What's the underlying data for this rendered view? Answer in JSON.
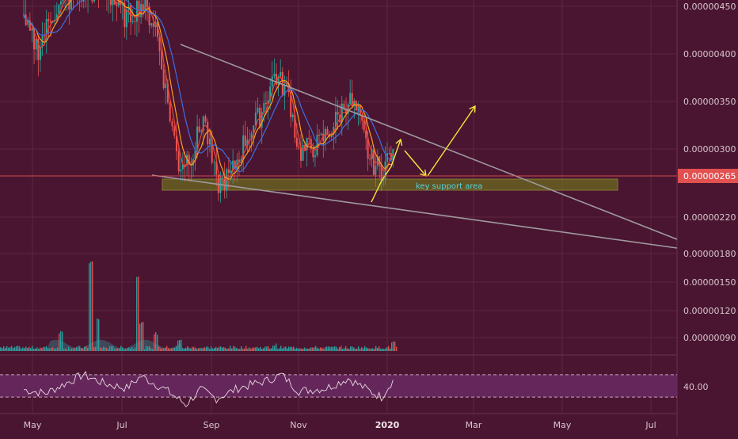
{
  "colors": {
    "background": "#4a1530",
    "grid": "#5e2740",
    "axis_text": "#d8c6cf",
    "candle_up": "#26a69a",
    "candle_down": "#ef5350",
    "ma_fast": "#f6a21a",
    "ma_slow": "#3d6fe0",
    "ma_red": "#e8463a",
    "trendline": "#9e9aa0",
    "support_fill": "#6b6a1f",
    "support_text": "#53d6e0",
    "arrow": "#f6e63a",
    "price_line": "#e25050",
    "price_tag_bg": "#e25050",
    "rsi_band": "#6a2a63",
    "rsi_line": "#e9d9e0",
    "volume": "#2aa7a7"
  },
  "chart_data": [
    {
      "type": "candlestick",
      "price_axis": {
        "ticks": [
          "0.00000450",
          "0.00000400",
          "0.00000350",
          "0.00000300",
          "0.00000265",
          "0.00000220",
          "0.00000180",
          "0.00000150",
          "0.00000120",
          "0.00000090"
        ],
        "current_price_label": "0.00000265",
        "current_price": 2.65e-06,
        "scale": "log"
      },
      "time_axis": {
        "ticks": [
          "May",
          "Jul",
          "Sep",
          "Nov",
          "2020",
          "Mar",
          "May",
          "Jul"
        ]
      },
      "annotations": [
        {
          "type": "zone",
          "label": "key support area",
          "from_price": 2.52e-06,
          "to_price": 2.62e-06
        },
        {
          "type": "trendline",
          "label": "",
          "role": "descending resistance"
        },
        {
          "type": "trendline",
          "label": "",
          "role": "descending support"
        },
        {
          "type": "projection-arrows",
          "label": ""
        }
      ],
      "moving_averages": [
        "fast",
        "slow",
        "red"
      ],
      "series_sketch": [
        {
          "t": "2019-04-25",
          "close": 4.2e-06
        },
        {
          "t": "2019-05-05",
          "close": 3.85e-06
        },
        {
          "t": "2019-05-15",
          "close": 4.4e-06
        },
        {
          "t": "2019-06-01",
          "close": 4.7e-06
        },
        {
          "t": "2019-06-20",
          "close": 4.8e-06
        },
        {
          "t": "2019-07-05",
          "close": 4.3e-06
        },
        {
          "t": "2019-07-15",
          "close": 4.55e-06
        },
        {
          "t": "2019-07-25",
          "close": 4.2e-06
        },
        {
          "t": "2019-08-01",
          "close": 3.3e-06
        },
        {
          "t": "2019-08-10",
          "close": 2.5e-06
        },
        {
          "t": "2019-08-20",
          "close": 2.62e-06
        },
        {
          "t": "2019-08-27",
          "close": 3e-06
        },
        {
          "t": "2019-09-05",
          "close": 2.32e-06
        },
        {
          "t": "2019-09-15",
          "close": 2.4e-06
        },
        {
          "t": "2019-09-25",
          "close": 2.75e-06
        },
        {
          "t": "2019-10-05",
          "close": 3e-06
        },
        {
          "t": "2019-10-15",
          "close": 3.5e-06
        },
        {
          "t": "2019-10-25",
          "close": 3.25e-06
        },
        {
          "t": "2019-11-01",
          "close": 2.62e-06
        },
        {
          "t": "2019-11-15",
          "close": 2.7e-06
        },
        {
          "t": "2019-11-25",
          "close": 2.9e-06
        },
        {
          "t": "2019-12-05",
          "close": 3.2e-06
        },
        {
          "t": "2019-12-12",
          "close": 3e-06
        },
        {
          "t": "2019-12-20",
          "close": 2.55e-06
        },
        {
          "t": "2019-12-28",
          "close": 2.45e-06
        },
        {
          "t": "2020-01-05",
          "close": 2.65e-06
        }
      ],
      "volume_sketch": [
        {
          "t": "2019-05-20",
          "v": 0.2
        },
        {
          "t": "2019-06-10",
          "v": 1.0
        },
        {
          "t": "2019-06-15",
          "v": 0.35
        },
        {
          "t": "2019-07-12",
          "v": 0.85
        },
        {
          "t": "2019-07-15",
          "v": 0.3
        },
        {
          "t": "2019-07-25",
          "v": 0.18
        },
        {
          "t": "2019-08-10",
          "v": 0.1
        },
        {
          "t": "2019-10-15",
          "v": 0.05
        },
        {
          "t": "2020-01-05",
          "v": 0.08
        }
      ]
    },
    {
      "type": "line",
      "name": "",
      "axis_ticks": [
        "40.00"
      ],
      "band": [
        40,
        70
      ],
      "ylim": [
        20,
        90
      ],
      "series_sketch": [
        {
          "t": "2019-04-25",
          "v": 50
        },
        {
          "t": "2019-05-10",
          "v": 45
        },
        {
          "t": "2019-06-05",
          "v": 70
        },
        {
          "t": "2019-06-20",
          "v": 58
        },
        {
          "t": "2019-07-05",
          "v": 52
        },
        {
          "t": "2019-07-15",
          "v": 68
        },
        {
          "t": "2019-08-01",
          "v": 50
        },
        {
          "t": "2019-08-15",
          "v": 30
        },
        {
          "t": "2019-08-25",
          "v": 50
        },
        {
          "t": "2019-09-05",
          "v": 38
        },
        {
          "t": "2019-09-20",
          "v": 52
        },
        {
          "t": "2019-10-10",
          "v": 62
        },
        {
          "t": "2019-10-20",
          "v": 70
        },
        {
          "t": "2019-11-01",
          "v": 48
        },
        {
          "t": "2019-11-20",
          "v": 52
        },
        {
          "t": "2019-12-05",
          "v": 65
        },
        {
          "t": "2019-12-20",
          "v": 48
        },
        {
          "t": "2019-12-28",
          "v": 40
        },
        {
          "t": "2020-01-05",
          "v": 63
        }
      ]
    }
  ]
}
